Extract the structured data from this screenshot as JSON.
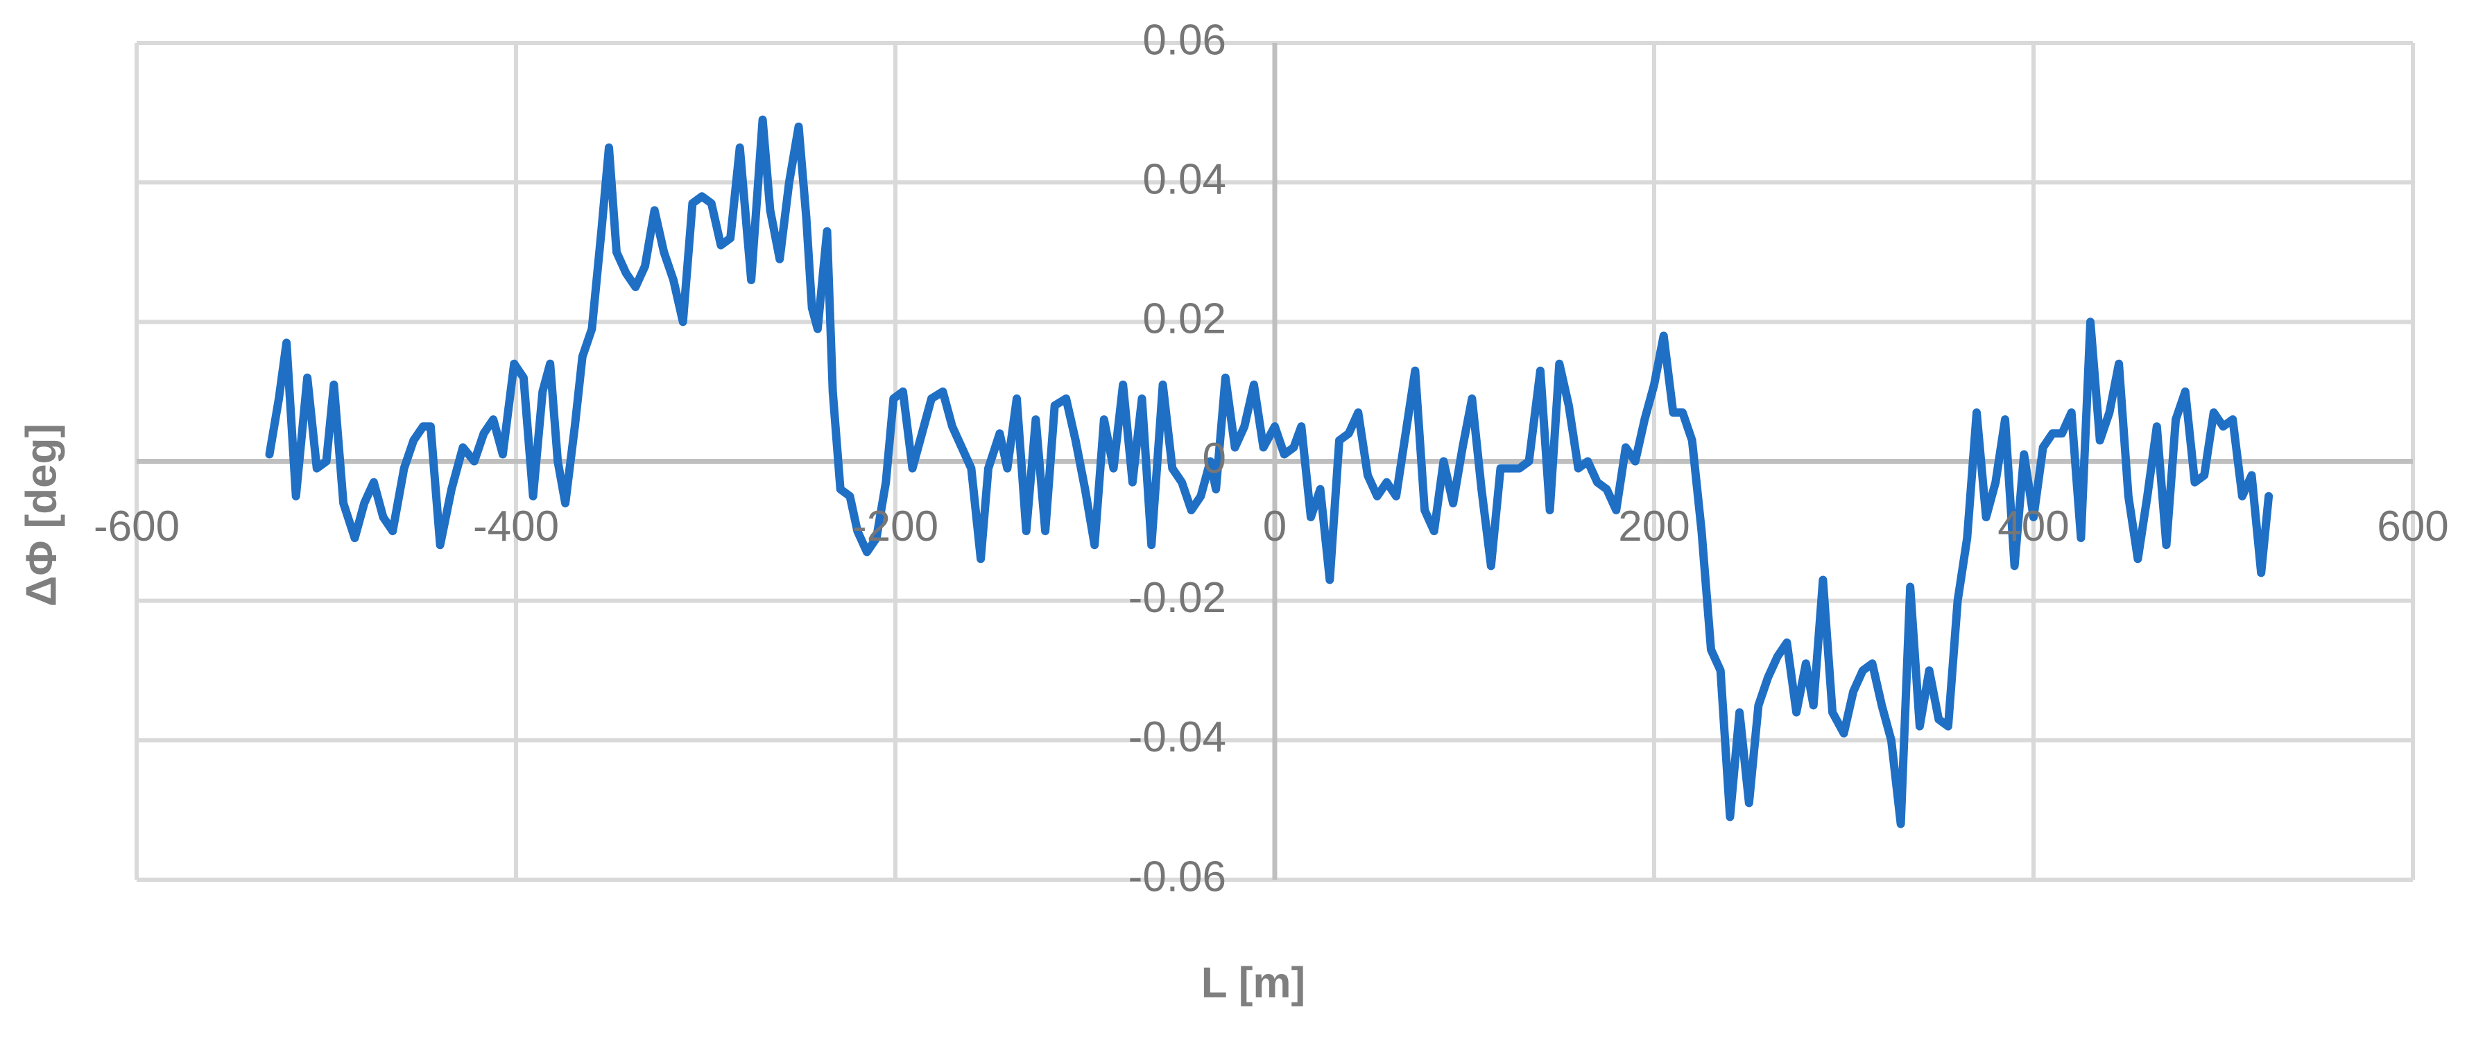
{
  "chart_data": {
    "type": "line",
    "x_label": "L [m]",
    "y_label": "ΔΦ [deg]",
    "color": "#1f6fc5",
    "grid": true,
    "xlim": [
      -600,
      600
    ],
    "xticks": [
      -600,
      -400,
      -200,
      0,
      200,
      400,
      600
    ],
    "ylim": [
      -0.06,
      0.06
    ],
    "yticks": [
      -0.06,
      -0.04,
      -0.02,
      0,
      0.02,
      0.04,
      0.06
    ],
    "x": [
      -530,
      -525,
      -521,
      -516,
      -510,
      -505,
      -500,
      -496,
      -491,
      -485,
      -480,
      -475,
      -470,
      -465,
      -459,
      -454,
      -449,
      -445,
      -440,
      -434,
      -428,
      -422,
      -417,
      -412,
      -407,
      -401,
      -396,
      -391,
      -386,
      -382,
      -378,
      -374,
      -369,
      -365,
      -360,
      -355,
      -351,
      -347,
      -342,
      -337,
      -332,
      -327,
      -322,
      -317,
      -312,
      -307,
      -302,
      -297,
      -292,
      -287,
      -282,
      -276,
      -270,
      -266,
      -261,
      -256,
      -251,
      -247,
      -244,
      -241,
      -236,
      -233,
      -229,
      -224,
      -220,
      -215,
      -210,
      -205,
      -201,
      -196,
      -191,
      -186,
      -181,
      -175,
      -170,
      -165,
      -160,
      -155,
      -151,
      -145,
      -141,
      -136,
      -131,
      -126,
      -121,
      -116,
      -110,
      -105,
      -100,
      -95,
      -90,
      -85,
      -80,
      -75,
      -70,
      -65,
      -59,
      -54,
      -49,
      -44,
      -39,
      -34,
      -31,
      -26,
      -21,
      -16,
      -11,
      -6,
      0,
      5,
      10,
      14,
      19,
      24,
      29,
      34,
      39,
      44,
      49,
      54,
      59,
      64,
      69,
      74,
      79,
      84,
      89,
      94,
      99,
      104,
      109,
      114,
      119,
      124,
      129,
      134,
      140,
      145,
      150,
      155,
      160,
      165,
      170,
      175,
      180,
      185,
      190,
      195,
      200,
      205,
      210,
      215,
      220,
      225,
      230,
      235,
      240,
      245,
      250,
      255,
      260,
      265,
      270,
      275,
      280,
      284,
      289,
      294,
      300,
      305,
      310,
      315,
      320,
      325,
      330,
      335,
      340,
      345,
      350,
      355,
      360,
      365,
      370,
      375,
      380,
      385,
      390,
      395,
      400,
      405,
      410,
      415,
      420,
      425,
      430,
      435,
      440,
      445,
      450,
      455,
      460,
      465,
      470,
      475,
      480,
      485,
      490,
      495,
      500,
      505,
      510,
      515,
      520,
      524
    ],
    "values": [
      0.001,
      0.009,
      0.017,
      -0.005,
      0.012,
      -0.001,
      0.0,
      0.011,
      -0.006,
      -0.011,
      -0.006,
      -0.003,
      -0.008,
      -0.01,
      -0.001,
      0.003,
      0.005,
      0.005,
      -0.012,
      -0.004,
      0.002,
      0.0,
      0.004,
      0.006,
      0.001,
      0.014,
      0.012,
      -0.005,
      0.01,
      0.014,
      0.0,
      -0.006,
      0.005,
      0.015,
      0.019,
      0.033,
      0.045,
      0.03,
      0.027,
      0.025,
      0.028,
      0.036,
      0.03,
      0.026,
      0.02,
      0.037,
      0.038,
      0.037,
      0.031,
      0.032,
      0.045,
      0.026,
      0.049,
      0.036,
      0.029,
      0.04,
      0.048,
      0.035,
      0.022,
      0.019,
      0.033,
      0.01,
      -0.004,
      -0.005,
      -0.01,
      -0.013,
      -0.011,
      -0.003,
      0.009,
      0.01,
      -0.001,
      0.004,
      0.009,
      0.01,
      0.005,
      0.002,
      -0.001,
      -0.014,
      -0.001,
      0.004,
      -0.001,
      0.009,
      -0.01,
      0.006,
      -0.01,
      0.008,
      0.009,
      0.003,
      -0.004,
      -0.012,
      0.006,
      -0.001,
      0.011,
      -0.003,
      0.009,
      -0.012,
      0.011,
      -0.001,
      -0.003,
      -0.007,
      -0.005,
      0.0,
      -0.004,
      0.012,
      0.002,
      0.005,
      0.011,
      0.002,
      0.005,
      0.001,
      0.002,
      0.005,
      -0.008,
      -0.004,
      -0.017,
      0.003,
      0.004,
      0.007,
      -0.002,
      -0.005,
      -0.003,
      -0.005,
      0.004,
      0.013,
      -0.007,
      -0.01,
      0.0,
      -0.006,
      0.002,
      0.009,
      -0.004,
      -0.015,
      -0.001,
      -0.001,
      -0.001,
      0.0,
      0.013,
      -0.007,
      0.014,
      0.008,
      -0.001,
      0.0,
      -0.003,
      -0.004,
      -0.007,
      0.002,
      0.0,
      0.006,
      0.011,
      0.018,
      0.007,
      0.007,
      0.003,
      -0.01,
      -0.027,
      -0.03,
      -0.051,
      -0.036,
      -0.049,
      -0.035,
      -0.031,
      -0.028,
      -0.026,
      -0.036,
      -0.029,
      -0.035,
      -0.017,
      -0.036,
      -0.039,
      -0.033,
      -0.03,
      -0.029,
      -0.035,
      -0.04,
      -0.052,
      -0.018,
      -0.038,
      -0.03,
      -0.037,
      -0.038,
      -0.02,
      -0.011,
      0.007,
      -0.008,
      -0.003,
      0.006,
      -0.015,
      0.001,
      -0.008,
      0.002,
      0.004,
      0.004,
      0.007,
      -0.011,
      0.02,
      0.003,
      0.007,
      0.014,
      -0.005,
      -0.014,
      -0.005,
      0.005,
      -0.012,
      0.006,
      0.01,
      -0.003,
      -0.002,
      0.007,
      0.005,
      0.006,
      -0.005,
      -0.002,
      -0.016,
      -0.005
    ]
  }
}
